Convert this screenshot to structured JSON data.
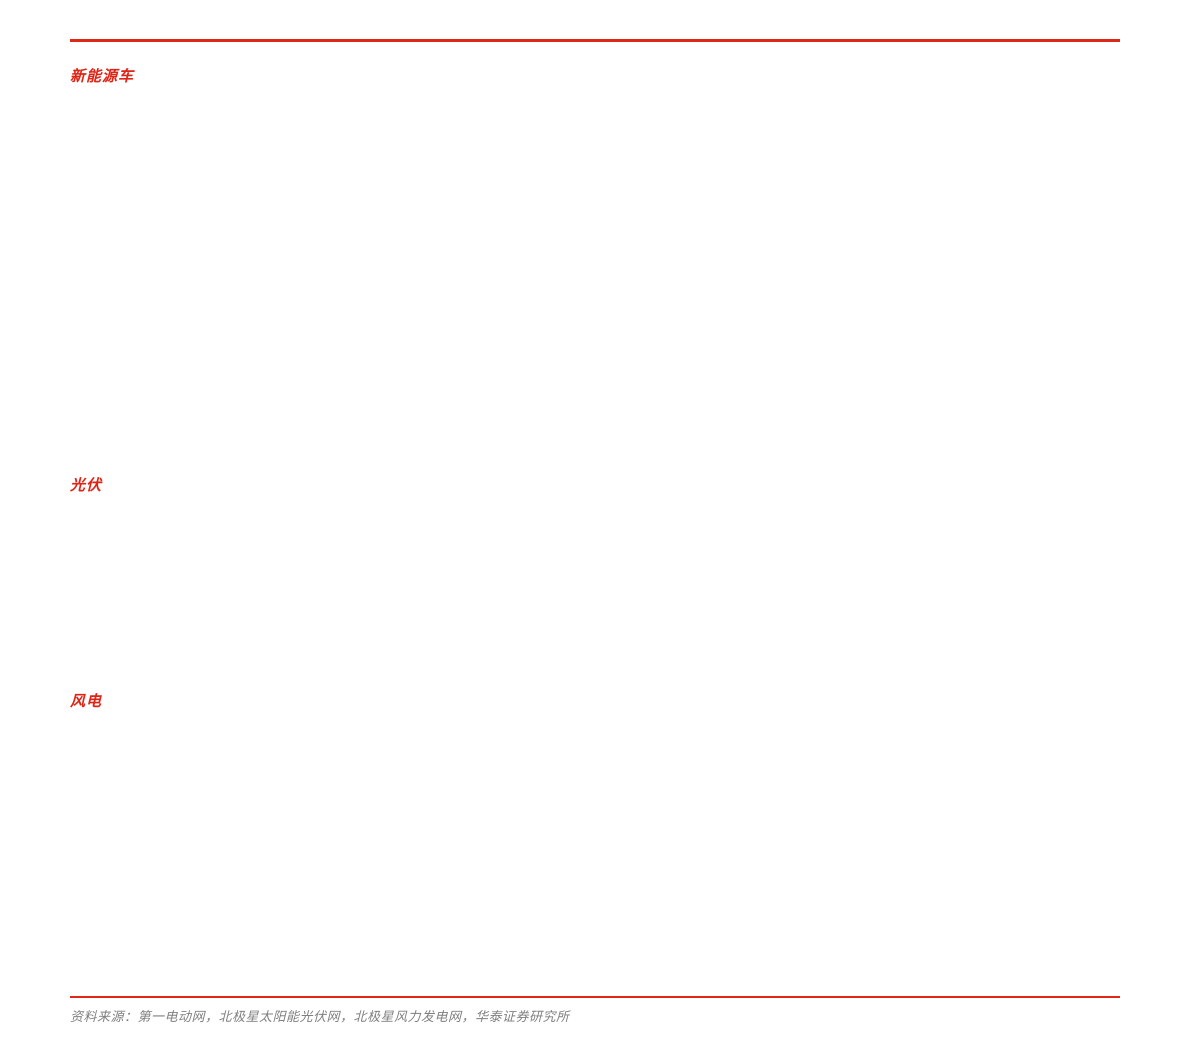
{
  "colors": {
    "accent_red": "#e02617",
    "heading_red": "#df2314",
    "source_gray": "#808080",
    "background": "#ffffff"
  },
  "sections": [
    {
      "label": "新能源车"
    },
    {
      "label": "光伏"
    },
    {
      "label": "风电"
    }
  ],
  "footer": {
    "source_text": "资料来源：第一电动网，北极星太阳能光伏网，北极星风力发电网，华泰证券研究所"
  }
}
